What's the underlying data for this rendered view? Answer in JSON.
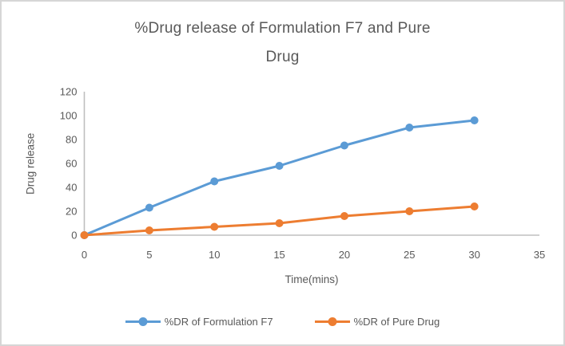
{
  "page": {
    "background_color": "#ffffff",
    "frame_border_color": "#d6d6d6"
  },
  "chart_data": {
    "type": "line",
    "title": "%Drug release of Formulation F7 and Pure Drug",
    "title_lines": [
      "%Drug release of Formulation F7 and Pure",
      "Drug"
    ],
    "xlabel": "Time(mins)",
    "ylabel": "Drug release",
    "x": [
      0,
      5,
      10,
      15,
      20,
      25,
      30
    ],
    "xlim": [
      0,
      35
    ],
    "ylim": [
      0,
      120
    ],
    "x_ticks": [
      0,
      5,
      10,
      15,
      20,
      25,
      30,
      35
    ],
    "y_ticks": [
      0,
      20,
      40,
      60,
      80,
      100,
      120
    ],
    "grid": false,
    "legend_position": "bottom",
    "marker": "circle",
    "axis_color": "#bfbfbf",
    "text_color": "#595959",
    "series": [
      {
        "name": "%DR of Formulation F7",
        "color": "#5B9BD5",
        "values": [
          0,
          23,
          45,
          58,
          75,
          90,
          96
        ]
      },
      {
        "name": "%DR of Pure Drug",
        "color": "#ED7D31",
        "values": [
          0,
          4,
          7,
          10,
          16,
          20,
          24
        ]
      }
    ]
  }
}
